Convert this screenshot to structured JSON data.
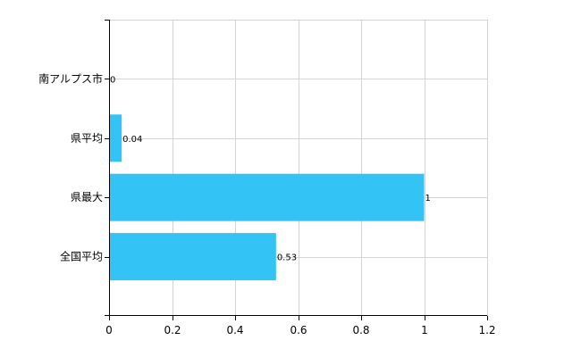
{
  "chart_data": {
    "type": "bar",
    "orientation": "horizontal",
    "categories": [
      "南アルプス市",
      "県平均",
      "県最大",
      "全国平均"
    ],
    "values": [
      0,
      0.04,
      1,
      0.53
    ],
    "data_labels": [
      "0",
      "0.04",
      "1",
      "0.53"
    ],
    "xlim": [
      0,
      1.2
    ],
    "x_ticks": [
      0,
      0.2,
      0.4,
      0.6,
      0.8,
      1,
      1.2
    ],
    "x_tick_labels": [
      "0",
      "0.2",
      "0.4",
      "0.6",
      "0.8",
      "1",
      "1.2"
    ],
    "grid": true,
    "legend": "none",
    "bar_color": "#33C3F5"
  }
}
